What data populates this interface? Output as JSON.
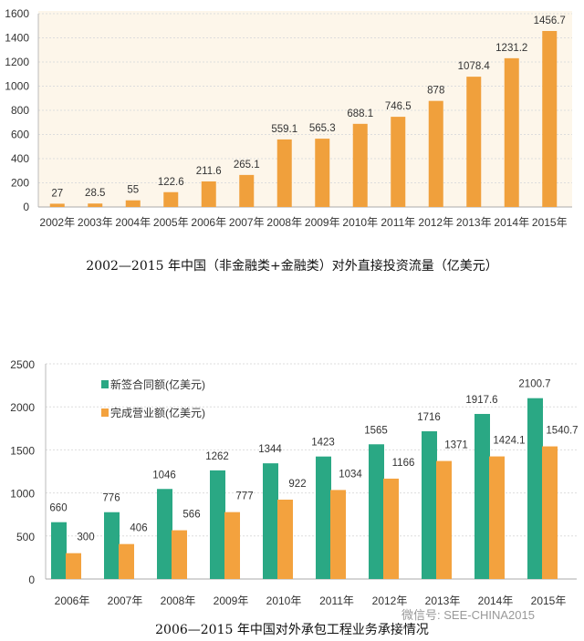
{
  "chart_data": [
    {
      "type": "bar",
      "title": "2002—2015 年中国（非金融类+金融类）对外直接投资流量（亿美元）",
      "categories": [
        "2002年",
        "2003年",
        "2004年",
        "2005年",
        "2006年",
        "2007年",
        "2008年",
        "2009年",
        "2010年",
        "2011年",
        "2012年",
        "2013年",
        "2014年",
        "2015年"
      ],
      "values": [
        27,
        28.5,
        55,
        122.6,
        211.6,
        265.1,
        559.1,
        565.3,
        688.1,
        746.5,
        878,
        1078.4,
        1231.2,
        1456.7
      ],
      "value_labels": [
        "27",
        "28.5",
        "55",
        "122.6",
        "211.6",
        "265.1",
        "559.1",
        "565.3",
        "688.1",
        "746.5",
        "878",
        "1078.4",
        "1231.2",
        "1456.7"
      ],
      "ylim": [
        0,
        1600
      ],
      "yticks": [
        "0",
        "200",
        "400",
        "600",
        "800",
        "1000",
        "1200",
        "1400",
        "1600"
      ],
      "grid": true,
      "color": "#f0a03c",
      "background": "#fdf6ea"
    },
    {
      "type": "bar",
      "title": "2006—2015 年中国对外承包工程业务承接情况",
      "categories": [
        "2006年",
        "2007年",
        "2008年",
        "2009年",
        "2010年",
        "2011年",
        "2012年",
        "2013年",
        "2014年",
        "2015年"
      ],
      "series": [
        {
          "name": "新签合同额(亿美元)",
          "values": [
            660,
            776,
            1046,
            1262,
            1344,
            1423,
            1565,
            1716,
            1917.6,
            2100.7
          ],
          "labels": [
            "660",
            "776",
            "1046",
            "1262",
            "1344",
            "1423",
            "1565",
            "1716",
            "1917.6",
            "2100.7"
          ],
          "color": "#2aa884"
        },
        {
          "name": "完成营业额(亿美元)",
          "values": [
            300,
            406,
            566,
            777,
            922,
            1034,
            1166,
            1371,
            1424.1,
            1540.7
          ],
          "labels": [
            "300",
            "406",
            "566",
            "777",
            "922",
            "1034",
            "1166",
            "1371",
            "1424.1",
            "1540.7"
          ],
          "color": "#f3a23e"
        }
      ],
      "ylim": [
        0,
        2500
      ],
      "yticks": [
        "0",
        "500",
        "1000",
        "1500",
        "2000",
        "2500"
      ],
      "grid": true,
      "legend": "top-left"
    }
  ],
  "watermark": "微信号: SEE-CHINA2015"
}
